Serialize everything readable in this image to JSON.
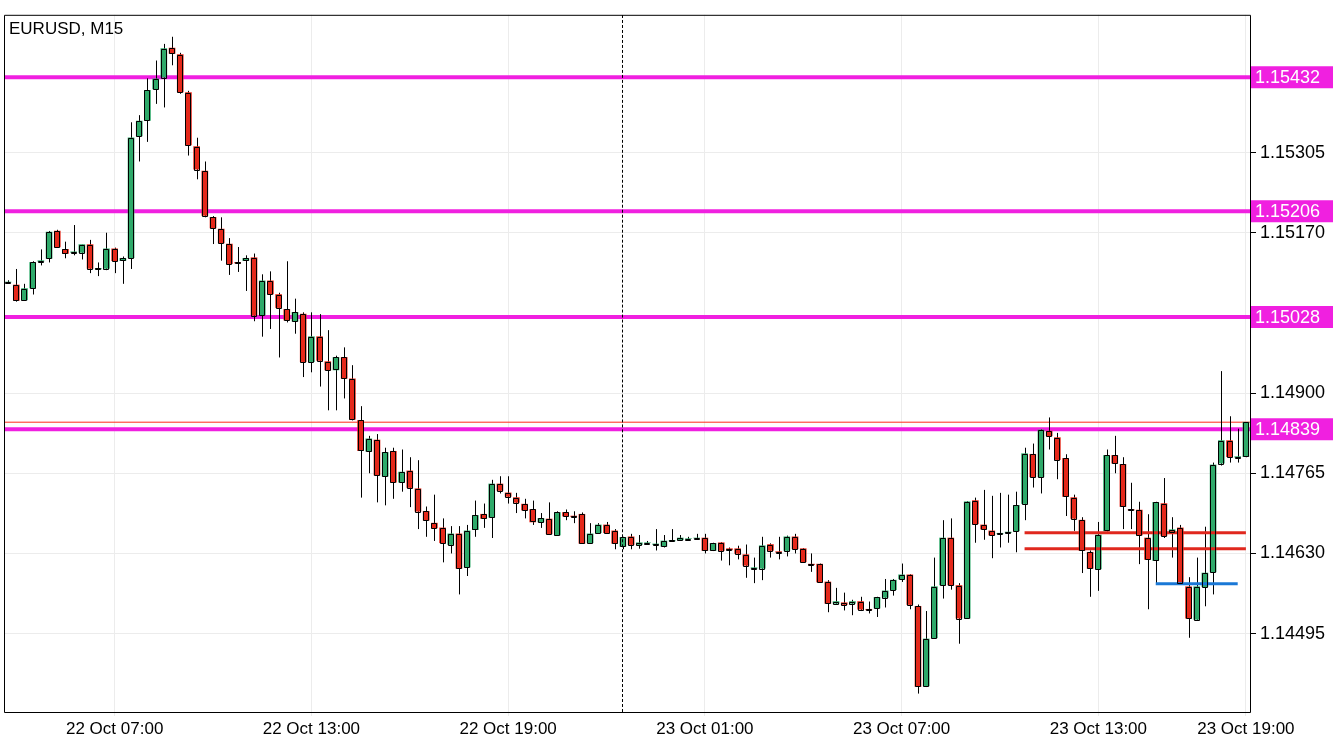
{
  "chart_data": {
    "type": "candlestick",
    "title": "EURUSD, M15",
    "categories": [
      null,
      null,
      null,
      null,
      null,
      null,
      null,
      null,
      null,
      null,
      null,
      null,
      null,
      "22 Oct 07:00",
      null,
      null,
      null,
      null,
      null,
      null,
      null,
      null,
      null,
      null,
      null,
      null,
      null,
      null,
      null,
      null,
      null,
      null,
      null,
      null,
      null,
      null,
      null,
      "22 Oct 13:00",
      null,
      null,
      null,
      null,
      null,
      null,
      null,
      null,
      null,
      null,
      null,
      null,
      null,
      null,
      null,
      null,
      null,
      null,
      null,
      null,
      null,
      null,
      null,
      "22 Oct 19:00",
      null,
      null,
      null,
      null,
      null,
      null,
      null,
      null,
      null,
      null,
      null,
      null,
      null,
      null,
      null,
      null,
      null,
      null,
      null,
      null,
      null,
      null,
      null,
      "23 Oct 01:00",
      null,
      null,
      null,
      null,
      null,
      null,
      null,
      null,
      null,
      null,
      null,
      null,
      null,
      null,
      null,
      null,
      null,
      null,
      null,
      null,
      null,
      null,
      null,
      "23 Oct 07:00",
      null,
      null,
      null,
      null,
      null,
      null,
      null,
      null,
      null,
      null,
      null,
      null,
      null,
      null,
      null,
      null,
      null,
      null,
      null,
      null,
      null,
      null,
      null,
      "23 Oct 13:00",
      null,
      null,
      null,
      null,
      null,
      null,
      null,
      null,
      null,
      null,
      null,
      null,
      null,
      null,
      null,
      null,
      null,
      "23 Oct 19:00"
    ],
    "colors": [
      "#2eaa6a",
      "#e5281a",
      "#2eaa6a",
      "#2eaa6a",
      "#2eaa6a",
      "#2eaa6a",
      "#e5281a",
      "#e5281a",
      "#2eaa6a",
      "#2eaa6a",
      "#e5281a",
      "#2eaa6a",
      "#2eaa6a",
      "#e5281a",
      "#2eaa6a",
      "#2eaa6a",
      "#2eaa6a",
      "#2eaa6a",
      "#2eaa6a",
      "#2eaa6a",
      "#e5281a",
      "#e5281a",
      "#e5281a",
      "#e5281a",
      "#e5281a",
      "#e5281a",
      "#e5281a",
      "#e5281a",
      "#e5281a",
      "#2eaa6a",
      "#e5281a",
      "#2eaa6a",
      "#e5281a",
      "#e5281a",
      "#e5281a",
      "#2eaa6a",
      "#e5281a",
      "#2eaa6a",
      "#e5281a",
      "#e5281a",
      "#2eaa6a",
      "#e5281a",
      "#e5281a",
      "#e5281a",
      "#2eaa6a",
      "#e5281a",
      "#2eaa6a",
      "#e5281a",
      "#2eaa6a",
      "#e5281a",
      "#e5281a",
      "#e5281a",
      "#e5281a",
      "#e5281a",
      "#2eaa6a",
      "#e5281a",
      "#2eaa6a",
      "#2eaa6a",
      "#e5281a",
      "#2eaa6a",
      "#e5281a",
      "#e5281a",
      "#e5281a",
      "#e5281a",
      "#e5281a",
      "#2eaa6a",
      "#e5281a",
      "#2eaa6a",
      "#e5281a",
      "#e5281a",
      "#e5281a",
      "#2eaa6a",
      "#2eaa6a",
      "#e5281a",
      "#e5281a",
      "#2eaa6a",
      "#e5281a",
      "#2eaa6a",
      "#2eaa6a",
      "#2eaa6a",
      "#2eaa6a",
      "#2eaa6a",
      "#2eaa6a",
      "#2eaa6a",
      "#2eaa6a",
      "#e5281a",
      "#2eaa6a",
      "#e5281a",
      "#e5281a",
      "#e5281a",
      "#e5281a",
      "#2eaa6a",
      "#2eaa6a",
      "#e5281a",
      "#e5281a",
      "#2eaa6a",
      "#e5281a",
      "#e5281a",
      "#e5281a",
      "#e5281a",
      "#e5281a",
      "#2eaa6a",
      "#e5281a",
      "#2eaa6a",
      "#e5281a",
      "#e5281a",
      "#2eaa6a",
      "#2eaa6a",
      "#2eaa6a",
      "#2eaa6a",
      "#e5281a",
      "#e5281a",
      "#2eaa6a",
      "#2eaa6a",
      "#2eaa6a",
      "#e5281a",
      "#e5281a",
      "#2eaa6a",
      "#e5281a",
      "#e5281a",
      "#e5281a",
      "#2eaa6a",
      "#2eaa6a",
      "#2eaa6a",
      "#2eaa6a",
      "#e5281a",
      "#2eaa6a",
      "#e5281a",
      "#e5281a",
      "#e5281a",
      "#e5281a",
      "#e5281a",
      "#e5281a",
      "#2eaa6a",
      "#2eaa6a",
      "#e5281a",
      "#e5281a",
      "#e5281a",
      "#e5281a",
      "#e5281a",
      "#2eaa6a",
      "#e5281a",
      "#2eaa6a",
      "#e5281a",
      "#e5281a",
      "#2eaa6a",
      "#2eaa6a",
      "#2eaa6a",
      "#2eaa6a",
      "#e5281a",
      "#2eaa6a",
      "#2eaa6a"
    ],
    "ohlc": [
      [
        1.15087,
        1.1509,
        1.15084,
        1.15087
      ],
      [
        1.15082,
        1.15109,
        1.15054,
        1.15056
      ],
      [
        1.15057,
        1.15084,
        1.15057,
        1.15076
      ],
      [
        1.15077,
        1.15122,
        1.15066,
        1.1512
      ],
      [
        1.15122,
        1.15142,
        1.15115,
        1.15123
      ],
      [
        1.15127,
        1.15173,
        1.1512,
        1.15171
      ],
      [
        1.15173,
        1.15175,
        1.15145,
        1.15146
      ],
      [
        1.15142,
        1.15155,
        1.15127,
        1.15135
      ],
      [
        1.15137,
        1.15183,
        1.15132,
        1.15138
      ],
      [
        1.15137,
        1.1515,
        1.15125,
        1.1515
      ],
      [
        1.1515,
        1.15158,
        1.15102,
        1.1511
      ],
      [
        1.15109,
        1.1512,
        1.15097,
        1.1511
      ],
      [
        1.1511,
        1.1517,
        1.15107,
        1.15143
      ],
      [
        1.15143,
        1.15145,
        1.15102,
        1.15123
      ],
      [
        1.15123,
        1.1513,
        1.15084,
        1.15127
      ],
      [
        1.15128,
        1.15356,
        1.15109,
        1.1533
      ],
      [
        1.15333,
        1.15368,
        1.1529,
        1.15358
      ],
      [
        1.15359,
        1.1543,
        1.15323,
        1.1541
      ],
      [
        1.15412,
        1.1546,
        1.15387,
        1.15429
      ],
      [
        1.15432,
        1.15488,
        1.15381,
        1.1548
      ],
      [
        1.15481,
        1.155,
        1.15452,
        1.15472
      ],
      [
        1.1547,
        1.15473,
        1.15404,
        1.15407
      ],
      [
        1.15406,
        1.15409,
        1.153,
        1.15318
      ],
      [
        1.15315,
        1.1533,
        1.1526,
        1.15277
      ],
      [
        1.15274,
        1.1529,
        1.15196,
        1.15199
      ],
      [
        1.15196,
        1.15198,
        1.15151,
        1.15178
      ],
      [
        1.15176,
        1.15196,
        1.15123,
        1.15153
      ],
      [
        1.15151,
        1.15161,
        1.15099,
        1.15118
      ],
      [
        1.1512,
        1.15146,
        1.15104,
        1.15119
      ],
      [
        1.15123,
        1.15132,
        1.15072,
        1.15127
      ],
      [
        1.15128,
        1.15135,
        1.15021,
        1.15031
      ],
      [
        1.15031,
        1.151,
        1.14995,
        1.15089
      ],
      [
        1.15089,
        1.15105,
        1.15008,
        1.15067
      ],
      [
        1.15066,
        1.15069,
        1.1496,
        1.15044
      ],
      [
        1.15041,
        1.15122,
        1.15019,
        1.15023
      ],
      [
        1.15021,
        1.15059,
        1.15,
        1.15036
      ],
      [
        1.15033,
        1.15036,
        1.14927,
        1.14953
      ],
      [
        1.14953,
        1.15036,
        1.14935,
        1.14995
      ],
      [
        1.14995,
        1.15033,
        1.14911,
        1.14955
      ],
      [
        1.14953,
        1.15006,
        1.14871,
        1.14939
      ],
      [
        1.14939,
        1.14963,
        1.14871,
        1.1496
      ],
      [
        1.1496,
        1.14977,
        1.14891,
        1.14925
      ],
      [
        1.14924,
        1.14947,
        1.14854,
        1.14856
      ],
      [
        1.14854,
        1.14878,
        1.14724,
        1.14803
      ],
      [
        1.14802,
        1.14828,
        1.14765,
        1.14823
      ],
      [
        1.14821,
        1.14831,
        1.14716,
        1.14762
      ],
      [
        1.1476,
        1.14808,
        1.14711,
        1.148
      ],
      [
        1.14802,
        1.14808,
        1.14722,
        1.1475
      ],
      [
        1.1475,
        1.14805,
        1.14734,
        1.14767
      ],
      [
        1.14769,
        1.14792,
        1.14708,
        1.14741
      ],
      [
        1.14739,
        1.14787,
        1.14671,
        1.14701
      ],
      [
        1.14701,
        1.14709,
        1.14658,
        1.14686
      ],
      [
        1.14681,
        1.14729,
        1.14651,
        1.14673
      ],
      [
        1.14673,
        1.14689,
        1.14615,
        1.14648
      ],
      [
        1.14645,
        1.14676,
        1.1463,
        1.14663
      ],
      [
        1.14663,
        1.14676,
        1.14561,
        1.14605
      ],
      [
        1.14607,
        1.14678,
        1.14592,
        1.14668
      ],
      [
        1.1467,
        1.14719,
        1.14658,
        1.14694
      ],
      [
        1.14696,
        1.14714,
        1.14673,
        1.14689
      ],
      [
        1.14691,
        1.14754,
        1.14656,
        1.14747
      ],
      [
        1.14747,
        1.1476,
        1.14731,
        1.14736
      ],
      [
        1.14732,
        1.1476,
        1.14714,
        1.14726
      ],
      [
        1.14724,
        1.14732,
        1.14698,
        1.14716
      ],
      [
        1.14713,
        1.14722,
        1.14689,
        1.14703
      ],
      [
        1.14704,
        1.14719,
        1.14678,
        1.14683
      ],
      [
        1.14683,
        1.14698,
        1.14673,
        1.14689
      ],
      [
        1.14688,
        1.14716,
        1.14661,
        1.14663
      ],
      [
        1.14661,
        1.14701,
        1.1466,
        1.14699
      ],
      [
        1.14699,
        1.14704,
        1.14686,
        1.14693
      ],
      [
        1.14693,
        1.14701,
        1.14681,
        1.14692
      ],
      [
        1.14696,
        1.14699,
        1.14646,
        1.14647
      ],
      [
        1.14648,
        1.14681,
        1.14647,
        1.14663
      ],
      [
        1.14665,
        1.14681,
        1.14663,
        1.14678
      ],
      [
        1.14678,
        1.14683,
        1.14664,
        1.14665
      ],
      [
        1.14668,
        1.14671,
        1.14637,
        1.14647
      ],
      [
        1.14642,
        1.14658,
        1.14637,
        1.14657
      ],
      [
        1.14658,
        1.14663,
        1.14637,
        1.14645
      ],
      [
        1.14645,
        1.14661,
        1.14638,
        1.14648
      ],
      [
        1.14648,
        1.14651,
        1.14645,
        1.14648
      ],
      [
        1.14645,
        1.14671,
        1.14635,
        1.14646
      ],
      [
        1.14642,
        1.14661,
        1.1464,
        1.14651
      ],
      [
        1.14651,
        1.14671,
        1.1465,
        1.14652
      ],
      [
        1.14653,
        1.14661,
        1.14652,
        1.14656
      ],
      [
        1.14655,
        1.14658,
        1.14651,
        1.14655
      ],
      [
        1.14656,
        1.14663,
        1.14653,
        1.14656
      ],
      [
        1.14656,
        1.14663,
        1.1463,
        1.14635
      ],
      [
        1.14635,
        1.14648,
        1.14634,
        1.14647
      ],
      [
        1.14648,
        1.14649,
        1.14618,
        1.14635
      ],
      [
        1.14638,
        1.1464,
        1.1461,
        1.14636
      ],
      [
        1.14638,
        1.14643,
        1.1462,
        1.1463
      ],
      [
        1.14628,
        1.14645,
        1.14589,
        1.1461
      ],
      [
        1.14605,
        1.14623,
        1.1458,
        1.14606
      ],
      [
        1.14605,
        1.14658,
        1.14585,
        1.14643
      ],
      [
        1.14645,
        1.14647,
        1.14623,
        1.14635
      ],
      [
        1.14633,
        1.14658,
        1.1462,
        1.14632
      ],
      [
        1.14635,
        1.1466,
        1.14625,
        1.14658
      ],
      [
        1.14658,
        1.14663,
        1.1463,
        1.14638
      ],
      [
        1.14638,
        1.14639,
        1.14615,
        1.14616
      ],
      [
        1.14612,
        1.1463,
        1.14599,
        1.14611
      ],
      [
        1.14612,
        1.14613,
        1.14581,
        1.14582
      ],
      [
        1.14582,
        1.14585,
        1.14531,
        1.14546
      ],
      [
        1.14546,
        1.14572,
        1.14544,
        1.14549
      ],
      [
        1.14547,
        1.14564,
        1.14534,
        1.14544
      ],
      [
        1.14546,
        1.14552,
        1.14526,
        1.14549
      ],
      [
        1.14549,
        1.14557,
        1.14533,
        1.14536
      ],
      [
        1.14536,
        1.14549,
        1.14529,
        1.14535
      ],
      [
        1.14538,
        1.14557,
        1.14523,
        1.14556
      ],
      [
        1.14556,
        1.14587,
        1.14539,
        1.14567
      ],
      [
        1.14569,
        1.14587,
        1.14559,
        1.14585
      ],
      [
        1.14587,
        1.14613,
        1.14582,
        1.14594
      ],
      [
        1.14594,
        1.14595,
        1.14536,
        1.14544
      ],
      [
        1.14541,
        1.14544,
        1.14394,
        1.14406
      ],
      [
        1.14407,
        1.14533,
        1.14405,
        1.14486
      ],
      [
        1.14488,
        1.14623,
        1.14487,
        1.14574
      ],
      [
        1.14577,
        1.14686,
        1.14554,
        1.14656
      ],
      [
        1.14656,
        1.14689,
        1.14569,
        1.14577
      ],
      [
        1.14576,
        1.1458,
        1.14478,
        1.14521
      ],
      [
        1.14521,
        1.14718,
        1.1452,
        1.14717
      ],
      [
        1.14719,
        1.14724,
        1.14648,
        1.1468
      ],
      [
        1.14678,
        1.14737,
        1.14653,
        1.14671
      ],
      [
        1.14668,
        1.14727,
        1.14622,
        1.14661
      ],
      [
        1.14663,
        1.14732,
        1.1464,
        1.14664
      ],
      [
        1.14665,
        1.14729,
        1.14648,
        1.14666
      ],
      [
        1.14668,
        1.14734,
        1.14632,
        1.14711
      ],
      [
        1.14714,
        1.14808,
        1.14686,
        1.14798
      ],
      [
        1.14797,
        1.14815,
        1.14741,
        1.14759
      ],
      [
        1.14759,
        1.14839,
        1.14731,
        1.14838
      ],
      [
        1.14836,
        1.14859,
        1.14805,
        1.14828
      ],
      [
        1.14825,
        1.14833,
        1.14755,
        1.14788
      ],
      [
        1.1479,
        1.14797,
        1.14693,
        1.14726
      ],
      [
        1.14724,
        1.14729,
        1.14668,
        1.14689
      ],
      [
        1.14686,
        1.14691,
        1.14597,
        1.14635
      ],
      [
        1.14632,
        1.14635,
        1.14557,
        1.14605
      ],
      [
        1.14604,
        1.14683,
        1.14567,
        1.14661
      ],
      [
        1.14668,
        1.14805,
        1.14667,
        1.14795
      ],
      [
        1.14795,
        1.14828,
        1.14765,
        1.14782
      ],
      [
        1.1478,
        1.14792,
        1.14671,
        1.14709
      ],
      [
        1.14704,
        1.14749,
        1.14671,
        1.14703
      ],
      [
        1.14703,
        1.14717,
        1.14612,
        1.14661
      ],
      [
        1.14656,
        1.14696,
        1.14536,
        1.1462
      ],
      [
        1.14618,
        1.14717,
        1.1458,
        1.14716
      ],
      [
        1.14714,
        1.14757,
        1.14656,
        1.1466
      ],
      [
        1.14666,
        1.14691,
        1.14623,
        1.1467
      ],
      [
        1.14673,
        1.14678,
        1.1458,
        1.14581
      ],
      [
        1.14574,
        1.1459,
        1.14488,
        1.14521
      ],
      [
        1.14519,
        1.14623,
        1.14518,
        1.14574
      ],
      [
        1.14574,
        1.14675,
        1.14541,
        1.14597
      ],
      [
        1.14599,
        1.14783,
        1.14561,
        1.14779
      ],
      [
        1.14782,
        1.14937,
        1.14778,
        1.1482
      ],
      [
        1.1482,
        1.14861,
        1.14783,
        1.14793
      ],
      [
        1.14792,
        1.1484,
        1.14783,
        1.14793
      ],
      [
        1.14793,
        1.14851,
        1.14792,
        1.14851
      ]
    ],
    "series": [
      {
        "type": "line",
        "color": "#e0281e",
        "values": [
          null,
          null,
          null,
          null,
          null,
          null,
          null,
          null,
          null,
          null,
          null,
          null,
          null,
          null,
          null,
          null,
          null,
          null,
          null,
          null,
          null,
          null,
          null,
          null,
          null,
          null,
          null,
          null,
          null,
          null,
          null,
          null,
          null,
          null,
          null,
          null,
          null,
          null,
          null,
          null,
          null,
          null,
          null,
          null,
          null,
          null,
          null,
          null,
          null,
          null,
          null,
          null,
          null,
          null,
          null,
          null,
          null,
          null,
          null,
          null,
          null,
          null,
          null,
          null,
          null,
          null,
          null,
          null,
          null,
          null,
          null,
          null,
          null,
          null,
          null,
          null,
          null,
          null,
          null,
          null,
          null,
          null,
          null,
          null,
          null,
          null,
          null,
          null,
          null,
          null,
          null,
          null,
          null,
          null,
          null,
          null,
          null,
          null,
          null,
          null,
          null,
          null,
          null,
          null,
          null,
          null,
          null,
          null,
          null,
          null,
          null,
          null,
          null,
          null,
          null,
          null,
          null,
          null,
          null,
          null,
          null,
          null,
          null,
          null,
          1.14665,
          1.14665,
          1.14665,
          1.14665,
          1.14665,
          1.14665,
          1.14665,
          1.14665,
          1.14665,
          1.14665,
          1.14665,
          1.14665,
          1.14665,
          1.14665,
          1.14665,
          1.14665,
          1.14665,
          1.14665,
          1.14665,
          1.14665,
          1.14665,
          1.14665,
          1.14665,
          1.14665,
          1.14665,
          1.14665,
          1.14665,
          1.14665
        ]
      },
      {
        "type": "line",
        "color": "#e0281e",
        "values": [
          null,
          null,
          null,
          null,
          null,
          null,
          null,
          null,
          null,
          null,
          null,
          null,
          null,
          null,
          null,
          null,
          null,
          null,
          null,
          null,
          null,
          null,
          null,
          null,
          null,
          null,
          null,
          null,
          null,
          null,
          null,
          null,
          null,
          null,
          null,
          null,
          null,
          null,
          null,
          null,
          null,
          null,
          null,
          null,
          null,
          null,
          null,
          null,
          null,
          null,
          null,
          null,
          null,
          null,
          null,
          null,
          null,
          null,
          null,
          null,
          null,
          null,
          null,
          null,
          null,
          null,
          null,
          null,
          null,
          null,
          null,
          null,
          null,
          null,
          null,
          null,
          null,
          null,
          null,
          null,
          null,
          null,
          null,
          null,
          null,
          null,
          null,
          null,
          null,
          null,
          null,
          null,
          null,
          null,
          null,
          null,
          null,
          null,
          null,
          null,
          null,
          null,
          null,
          null,
          null,
          null,
          null,
          null,
          null,
          null,
          null,
          null,
          null,
          null,
          null,
          null,
          null,
          null,
          null,
          null,
          null,
          null,
          null,
          null,
          1.14638,
          1.14638,
          1.14638,
          1.14638,
          1.14638,
          1.14638,
          1.14638,
          1.14638,
          1.14638,
          1.14638,
          1.14638,
          1.14638,
          1.14638,
          1.14638,
          1.14638,
          1.14638,
          1.14638,
          1.14638,
          1.14638,
          1.14638,
          1.14638,
          1.14638,
          1.14638,
          1.14638,
          1.14638,
          1.14638,
          1.14638,
          1.14638
        ]
      },
      {
        "type": "line",
        "color": "#1a78d6",
        "values": [
          null,
          null,
          null,
          null,
          null,
          null,
          null,
          null,
          null,
          null,
          null,
          null,
          null,
          null,
          null,
          null,
          null,
          null,
          null,
          null,
          null,
          null,
          null,
          null,
          null,
          null,
          null,
          null,
          null,
          null,
          null,
          null,
          null,
          null,
          null,
          null,
          null,
          null,
          null,
          null,
          null,
          null,
          null,
          null,
          null,
          null,
          null,
          null,
          null,
          null,
          null,
          null,
          null,
          null,
          null,
          null,
          null,
          null,
          null,
          null,
          null,
          null,
          null,
          null,
          null,
          null,
          null,
          null,
          null,
          null,
          null,
          null,
          null,
          null,
          null,
          null,
          null,
          null,
          null,
          null,
          null,
          null,
          null,
          null,
          null,
          null,
          null,
          null,
          null,
          null,
          null,
          null,
          null,
          null,
          null,
          null,
          null,
          null,
          null,
          null,
          null,
          null,
          null,
          null,
          null,
          null,
          null,
          null,
          null,
          null,
          null,
          null,
          null,
          null,
          null,
          null,
          null,
          null,
          null,
          null,
          null,
          null,
          null,
          null,
          null,
          null,
          null,
          null,
          null,
          null,
          null,
          null,
          null,
          null,
          null,
          null,
          null,
          null,
          null,
          null,
          1.14579,
          1.14579,
          1.14579,
          1.14579,
          1.14579,
          1.14579,
          1.14579,
          1.14579,
          1.14579,
          1.14579,
          1.14579,
          null
        ]
      }
    ],
    "ylim": [
      1.14363,
      1.15537
    ],
    "yticks": [
      1.15305,
      {
        "value": 1.1517,
        "label": "1.15170"
      },
      {
        "value": 1.149,
        "label": "1.14900"
      },
      1.14765,
      {
        "value": 1.1463,
        "label": "1.14630"
      },
      1.14495
    ],
    "ref_lines": [
      {
        "axis": "y",
        "value": 1.14851,
        "color": "#ff2a1a"
      },
      {
        "axis": "y",
        "value": 1.15432,
        "label": "1.15432",
        "color": "#f020e0"
      },
      {
        "axis": "y",
        "value": 1.15206,
        "label": "1.15206",
        "color": "#f020e0"
      },
      {
        "axis": "y",
        "value": 1.15028,
        "label": "1.15028",
        "color": "#f020e0"
      },
      {
        "axis": "y",
        "value": 1.14839,
        "label": "1.14839",
        "color": "#f020e0"
      }
    ],
    "grid": true
  }
}
